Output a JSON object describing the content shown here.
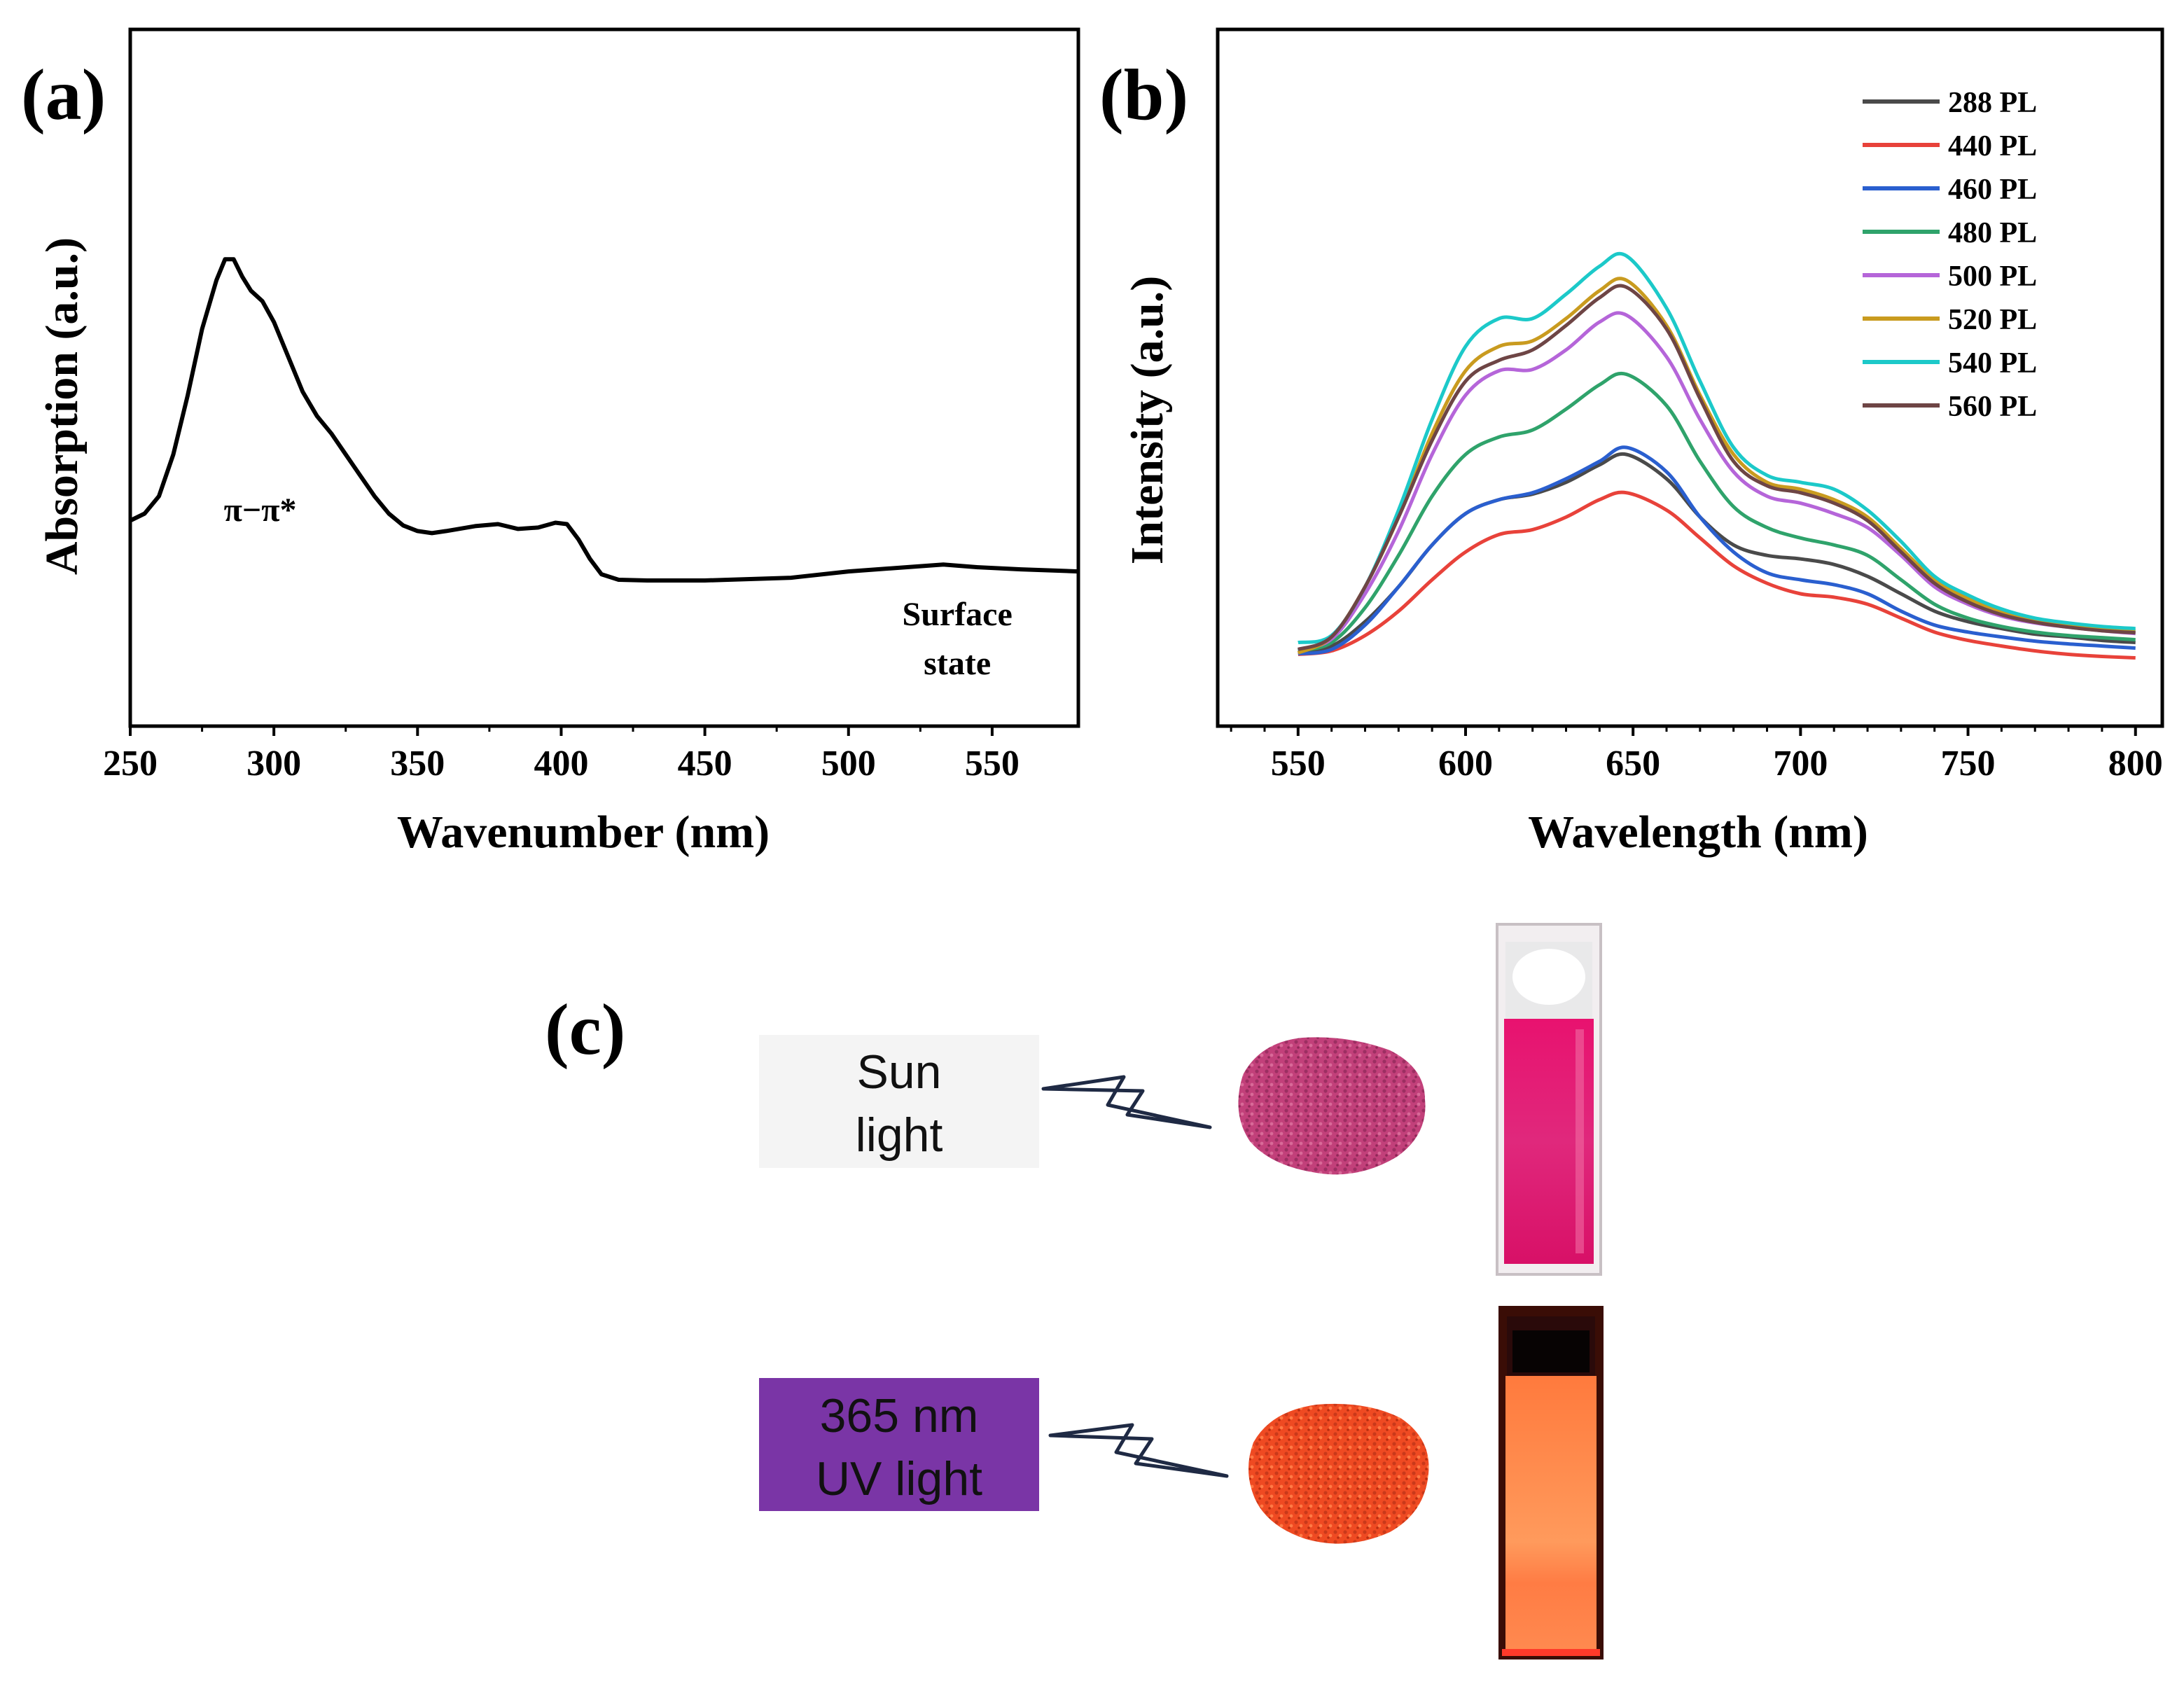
{
  "panel_c": {
    "label": "(c)",
    "sun_label": [
      "Sun",
      "light"
    ],
    "uv_label": [
      "365 nm",
      "UV light"
    ],
    "colors": {
      "sun_box": "#f4f4f4",
      "uv_box": "#7a35a6",
      "pink_powder": "#c2407a",
      "red_powder": "#ef4a22",
      "pink_solution": "#e0126f",
      "orange_solution": "#ff8a4a"
    }
  },
  "chart_data": [
    {
      "panel": "(a)",
      "type": "line",
      "title": "",
      "xlabel": "Wavenumber (nm)",
      "ylabel": "Absorption (a.u.)",
      "xlim": [
        250,
        580
      ],
      "ylim": [
        0,
        1
      ],
      "xticks": [
        250,
        300,
        350,
        400,
        450,
        500,
        550
      ],
      "yticks_shown": false,
      "annotations": [
        {
          "text": "π−π*",
          "x": 285,
          "y": 0.355
        },
        {
          "text": [
            "Surface",
            "state"
          ],
          "x": 533,
          "y": 0.17
        }
      ],
      "series": [
        {
          "name": "Absorption",
          "color": "#000000",
          "points": [
            [
              250,
              0.295
            ],
            [
              255,
              0.305
            ],
            [
              260,
              0.33
            ],
            [
              265,
              0.39
            ],
            [
              270,
              0.475
            ],
            [
              275,
              0.57
            ],
            [
              280,
              0.64
            ],
            [
              283,
              0.67
            ],
            [
              286,
              0.67
            ],
            [
              289,
              0.645
            ],
            [
              292,
              0.625
            ],
            [
              296,
              0.61
            ],
            [
              300,
              0.58
            ],
            [
              305,
              0.53
            ],
            [
              310,
              0.48
            ],
            [
              315,
              0.445
            ],
            [
              320,
              0.42
            ],
            [
              325,
              0.39
            ],
            [
              330,
              0.36
            ],
            [
              335,
              0.33
            ],
            [
              340,
              0.305
            ],
            [
              345,
              0.288
            ],
            [
              350,
              0.28
            ],
            [
              355,
              0.277
            ],
            [
              360,
              0.28
            ],
            [
              370,
              0.287
            ],
            [
              378,
              0.29
            ],
            [
              385,
              0.283
            ],
            [
              392,
              0.285
            ],
            [
              398,
              0.292
            ],
            [
              402,
              0.29
            ],
            [
              406,
              0.268
            ],
            [
              410,
              0.24
            ],
            [
              414,
              0.218
            ],
            [
              420,
              0.21
            ],
            [
              430,
              0.209
            ],
            [
              450,
              0.209
            ],
            [
              480,
              0.213
            ],
            [
              500,
              0.222
            ],
            [
              520,
              0.228
            ],
            [
              533,
              0.232
            ],
            [
              545,
              0.228
            ],
            [
              560,
              0.225
            ],
            [
              580,
              0.222
            ]
          ]
        }
      ]
    },
    {
      "panel": "(b)",
      "type": "line",
      "title": "",
      "xlabel": "Wavelength (nm)",
      "ylabel": "Intensity (a.u.)",
      "xlim": [
        526,
        808
      ],
      "ylim": [
        0,
        1
      ],
      "xticks": [
        550,
        600,
        650,
        700,
        750,
        800
      ],
      "yticks_shown": false,
      "legend_position": "top-right",
      "x": [
        550,
        560,
        570,
        580,
        590,
        600,
        610,
        620,
        630,
        640,
        648,
        660,
        670,
        680,
        690,
        700,
        710,
        720,
        730,
        740,
        750,
        760,
        770,
        780,
        790,
        800
      ],
      "series": [
        {
          "name": "288 PL",
          "color": "#4a4a4a",
          "values": [
            0.108,
            0.115,
            0.15,
            0.2,
            0.26,
            0.305,
            0.325,
            0.333,
            0.35,
            0.375,
            0.39,
            0.355,
            0.3,
            0.26,
            0.245,
            0.24,
            0.232,
            0.215,
            0.19,
            0.165,
            0.15,
            0.14,
            0.132,
            0.128,
            0.123,
            0.12
          ]
        },
        {
          "name": "440 PL",
          "color": "#e8423a",
          "values": [
            0.103,
            0.108,
            0.13,
            0.165,
            0.21,
            0.25,
            0.275,
            0.282,
            0.3,
            0.325,
            0.335,
            0.31,
            0.27,
            0.23,
            0.205,
            0.19,
            0.185,
            0.175,
            0.155,
            0.135,
            0.123,
            0.115,
            0.108,
            0.103,
            0.1,
            0.098
          ]
        },
        {
          "name": "460 PL",
          "color": "#2a5fcf",
          "values": [
            0.104,
            0.11,
            0.145,
            0.2,
            0.26,
            0.305,
            0.325,
            0.335,
            0.355,
            0.38,
            0.4,
            0.365,
            0.3,
            0.25,
            0.22,
            0.21,
            0.203,
            0.19,
            0.165,
            0.145,
            0.135,
            0.128,
            0.122,
            0.118,
            0.115,
            0.112
          ]
        },
        {
          "name": "480 PL",
          "color": "#2fa36b",
          "values": [
            0.108,
            0.12,
            0.17,
            0.245,
            0.33,
            0.39,
            0.415,
            0.425,
            0.455,
            0.49,
            0.505,
            0.46,
            0.38,
            0.315,
            0.285,
            0.27,
            0.26,
            0.245,
            0.21,
            0.175,
            0.155,
            0.143,
            0.135,
            0.13,
            0.127,
            0.124
          ]
        },
        {
          "name": "500 PL",
          "color": "#b565d9",
          "values": [
            0.11,
            0.125,
            0.19,
            0.28,
            0.39,
            0.475,
            0.51,
            0.512,
            0.54,
            0.58,
            0.59,
            0.53,
            0.44,
            0.365,
            0.33,
            0.32,
            0.305,
            0.285,
            0.245,
            0.2,
            0.175,
            0.158,
            0.148,
            0.142,
            0.137,
            0.133
          ]
        },
        {
          "name": "520 PL",
          "color": "#c99b1f",
          "values": [
            0.105,
            0.128,
            0.2,
            0.3,
            0.42,
            0.51,
            0.545,
            0.553,
            0.585,
            0.625,
            0.64,
            0.575,
            0.475,
            0.39,
            0.35,
            0.34,
            0.325,
            0.3,
            0.255,
            0.21,
            0.183,
            0.165,
            0.152,
            0.145,
            0.14,
            0.137
          ]
        },
        {
          "name": "540 PL",
          "color": "#1cc9c9",
          "values": [
            0.12,
            0.13,
            0.2,
            0.31,
            0.44,
            0.545,
            0.585,
            0.585,
            0.62,
            0.66,
            0.675,
            0.6,
            0.495,
            0.4,
            0.36,
            0.35,
            0.34,
            0.31,
            0.265,
            0.215,
            0.188,
            0.168,
            0.155,
            0.148,
            0.143,
            0.14
          ]
        },
        {
          "name": "560 PL",
          "color": "#6e4545",
          "values": [
            0.11,
            0.128,
            0.2,
            0.3,
            0.41,
            0.495,
            0.525,
            0.54,
            0.575,
            0.615,
            0.63,
            0.57,
            0.47,
            0.38,
            0.345,
            0.335,
            0.32,
            0.295,
            0.25,
            0.205,
            0.178,
            0.16,
            0.149,
            0.142,
            0.137,
            0.134
          ]
        }
      ]
    }
  ]
}
